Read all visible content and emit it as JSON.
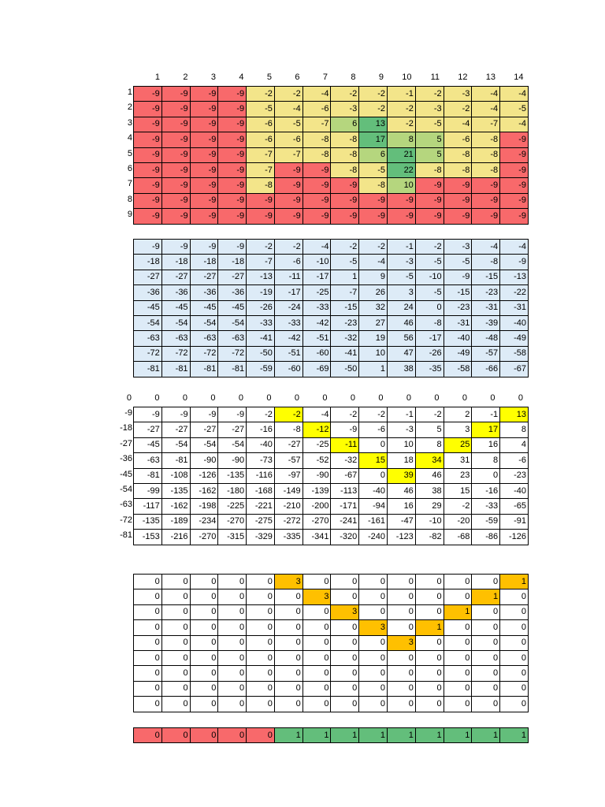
{
  "colors": {
    "red": "#f8696b",
    "yellow": "#f3e58a",
    "light_green": "#b5d67e",
    "green": "#63be7b",
    "light_blue": "#ddebf7",
    "highlight_yellow": "#ffff00",
    "highlight_orange": "#ffc000"
  },
  "table1": {
    "col_headers": [
      "1",
      "2",
      "3",
      "4",
      "5",
      "6",
      "7",
      "8",
      "9",
      "10",
      "11",
      "12",
      "13",
      "14"
    ],
    "row_headers": [
      "1",
      "2",
      "3",
      "4",
      "5",
      "6",
      "7",
      "8",
      "9"
    ],
    "rows": [
      [
        "-9",
        "-9",
        "-9",
        "-9",
        "-2",
        "-2",
        "-4",
        "-2",
        "-2",
        "-1",
        "-2",
        "-3",
        "-4",
        "-4"
      ],
      [
        "-9",
        "-9",
        "-9",
        "-9",
        "-5",
        "-4",
        "-6",
        "-3",
        "-2",
        "-2",
        "-3",
        "-2",
        "-4",
        "-5"
      ],
      [
        "-9",
        "-9",
        "-9",
        "-9",
        "-6",
        "-5",
        "-7",
        "6",
        "13",
        "-2",
        "-5",
        "-4",
        "-7",
        "-4"
      ],
      [
        "-9",
        "-9",
        "-9",
        "-9",
        "-6",
        "-6",
        "-8",
        "-8",
        "17",
        "8",
        "5",
        "-6",
        "-8",
        "-9"
      ],
      [
        "-9",
        "-9",
        "-9",
        "-9",
        "-7",
        "-7",
        "-8",
        "-8",
        "6",
        "21",
        "5",
        "-8",
        "-8",
        "-9"
      ],
      [
        "-9",
        "-9",
        "-9",
        "-9",
        "-7",
        "-9",
        "-9",
        "-8",
        "-5",
        "22",
        "-8",
        "-8",
        "-8",
        "-9"
      ],
      [
        "-9",
        "-9",
        "-9",
        "-9",
        "-8",
        "-9",
        "-9",
        "-9",
        "-8",
        "10",
        "-9",
        "-9",
        "-9",
        "-9"
      ],
      [
        "-9",
        "-9",
        "-9",
        "-9",
        "-9",
        "-9",
        "-9",
        "-9",
        "-9",
        "-9",
        "-9",
        "-9",
        "-9",
        "-9"
      ],
      [
        "-9",
        "-9",
        "-9",
        "-9",
        "-9",
        "-9",
        "-9",
        "-9",
        "-9",
        "-9",
        "-9",
        "-9",
        "-9",
        "-9"
      ]
    ],
    "fills": [
      "RRRRYYYYYYYYYY",
      "RRRRYYYYYYYYYY",
      "RRRRYYYLGYYYYY",
      "RRRRYYYYGLLYYR",
      "RRRRYYYYLGLYYR",
      "RRRRYRRYYGYYYR",
      "RRRRYRRRYLRRRR",
      "RRRRRRRRRRRRRR",
      "RRRRRRRRRRRRRR"
    ]
  },
  "table2": {
    "rows": [
      [
        "-9",
        "-9",
        "-9",
        "-9",
        "-2",
        "-2",
        "-4",
        "-2",
        "-2",
        "-1",
        "-2",
        "-3",
        "-4",
        "-4"
      ],
      [
        "-18",
        "-18",
        "-18",
        "-18",
        "-7",
        "-6",
        "-10",
        "-5",
        "-4",
        "-3",
        "-5",
        "-5",
        "-8",
        "-9"
      ],
      [
        "-27",
        "-27",
        "-27",
        "-27",
        "-13",
        "-11",
        "-17",
        "1",
        "9",
        "-5",
        "-10",
        "-9",
        "-15",
        "-13"
      ],
      [
        "-36",
        "-36",
        "-36",
        "-36",
        "-19",
        "-17",
        "-25",
        "-7",
        "26",
        "3",
        "-5",
        "-15",
        "-23",
        "-22"
      ],
      [
        "-45",
        "-45",
        "-45",
        "-45",
        "-26",
        "-24",
        "-33",
        "-15",
        "32",
        "24",
        "0",
        "-23",
        "-31",
        "-31"
      ],
      [
        "-54",
        "-54",
        "-54",
        "-54",
        "-33",
        "-33",
        "-42",
        "-23",
        "27",
        "46",
        "-8",
        "-31",
        "-39",
        "-40"
      ],
      [
        "-63",
        "-63",
        "-63",
        "-63",
        "-41",
        "-42",
        "-51",
        "-32",
        "19",
        "56",
        "-17",
        "-40",
        "-48",
        "-49"
      ],
      [
        "-72",
        "-72",
        "-72",
        "-72",
        "-50",
        "-51",
        "-60",
        "-41",
        "10",
        "47",
        "-26",
        "-49",
        "-57",
        "-58"
      ],
      [
        "-81",
        "-81",
        "-81",
        "-81",
        "-59",
        "-60",
        "-69",
        "-50",
        "1",
        "38",
        "-35",
        "-58",
        "-66",
        "-67"
      ]
    ]
  },
  "table3": {
    "top_row": [
      "0",
      "0",
      "0",
      "0",
      "0",
      "0",
      "0",
      "0",
      "0",
      "0",
      "0",
      "0",
      "0",
      "0",
      "0"
    ],
    "row_labels": [
      "-9",
      "-18",
      "-27",
      "-36",
      "-45",
      "-54",
      "-63",
      "-72",
      "-81"
    ],
    "rows": [
      [
        "-9",
        "-9",
        "-9",
        "-9",
        "-2",
        "-2",
        "-4",
        "-2",
        "-2",
        "-1",
        "-2",
        "2",
        "-1",
        "13"
      ],
      [
        "-27",
        "-27",
        "-27",
        "-27",
        "-16",
        "-8",
        "-12",
        "-9",
        "-6",
        "-3",
        "5",
        "3",
        "17",
        "8"
      ],
      [
        "-45",
        "-54",
        "-54",
        "-54",
        "-40",
        "-27",
        "-25",
        "-11",
        "0",
        "10",
        "8",
        "25",
        "16",
        "4"
      ],
      [
        "-63",
        "-81",
        "-90",
        "-90",
        "-73",
        "-57",
        "-52",
        "-32",
        "15",
        "18",
        "34",
        "31",
        "8",
        "-6"
      ],
      [
        "-81",
        "-108",
        "-126",
        "-135",
        "-116",
        "-97",
        "-90",
        "-67",
        "0",
        "39",
        "46",
        "23",
        "0",
        "-23"
      ],
      [
        "-99",
        "-135",
        "-162",
        "-180",
        "-168",
        "-149",
        "-139",
        "-113",
        "-40",
        "46",
        "38",
        "15",
        "-16",
        "-40"
      ],
      [
        "-117",
        "-162",
        "-198",
        "-225",
        "-221",
        "-210",
        "-200",
        "-171",
        "-94",
        "16",
        "29",
        "-2",
        "-33",
        "-65"
      ],
      [
        "-135",
        "-189",
        "-234",
        "-270",
        "-275",
        "-272",
        "-270",
        "-241",
        "-161",
        "-47",
        "-10",
        "-20",
        "-59",
        "-91"
      ],
      [
        "-153",
        "-216",
        "-270",
        "-315",
        "-329",
        "-335",
        "-341",
        "-320",
        "-240",
        "-123",
        "-82",
        "-68",
        "-86",
        "-126"
      ]
    ],
    "highlights": [
      [
        0,
        5
      ],
      [
        0,
        13
      ],
      [
        1,
        6
      ],
      [
        1,
        12
      ],
      [
        2,
        7
      ],
      [
        2,
        11
      ],
      [
        3,
        8
      ],
      [
        3,
        10
      ],
      [
        4,
        9
      ]
    ]
  },
  "table4": {
    "rows": [
      [
        "0",
        "0",
        "0",
        "0",
        "0",
        "3",
        "0",
        "0",
        "0",
        "0",
        "0",
        "0",
        "0",
        "1"
      ],
      [
        "0",
        "0",
        "0",
        "0",
        "0",
        "0",
        "3",
        "0",
        "0",
        "0",
        "0",
        "0",
        "1",
        "0"
      ],
      [
        "0",
        "0",
        "0",
        "0",
        "0",
        "0",
        "0",
        "3",
        "0",
        "0",
        "0",
        "1",
        "0",
        "0"
      ],
      [
        "0",
        "0",
        "0",
        "0",
        "0",
        "0",
        "0",
        "0",
        "3",
        "0",
        "1",
        "0",
        "0",
        "0"
      ],
      [
        "0",
        "0",
        "0",
        "0",
        "0",
        "0",
        "0",
        "0",
        "0",
        "3",
        "0",
        "0",
        "0",
        "0"
      ],
      [
        "0",
        "0",
        "0",
        "0",
        "0",
        "0",
        "0",
        "0",
        "0",
        "0",
        "0",
        "0",
        "0",
        "0"
      ],
      [
        "0",
        "0",
        "0",
        "0",
        "0",
        "0",
        "0",
        "0",
        "0",
        "0",
        "0",
        "0",
        "0",
        "0"
      ],
      [
        "0",
        "0",
        "0",
        "0",
        "0",
        "0",
        "0",
        "0",
        "0",
        "0",
        "0",
        "0",
        "0",
        "0"
      ],
      [
        "0",
        "0",
        "0",
        "0",
        "0",
        "0",
        "0",
        "0",
        "0",
        "0",
        "0",
        "0",
        "0",
        "0"
      ]
    ],
    "highlights": [
      [
        0,
        5
      ],
      [
        0,
        13
      ],
      [
        1,
        6
      ],
      [
        1,
        12
      ],
      [
        2,
        7
      ],
      [
        2,
        11
      ],
      [
        3,
        8
      ],
      [
        3,
        10
      ],
      [
        4,
        9
      ]
    ]
  },
  "table5": {
    "row": [
      "0",
      "0",
      "0",
      "0",
      "0",
      "1",
      "1",
      "1",
      "1",
      "1",
      "1",
      "1",
      "1",
      "1"
    ],
    "fills": "RRRRRGGGGGGGGG"
  }
}
